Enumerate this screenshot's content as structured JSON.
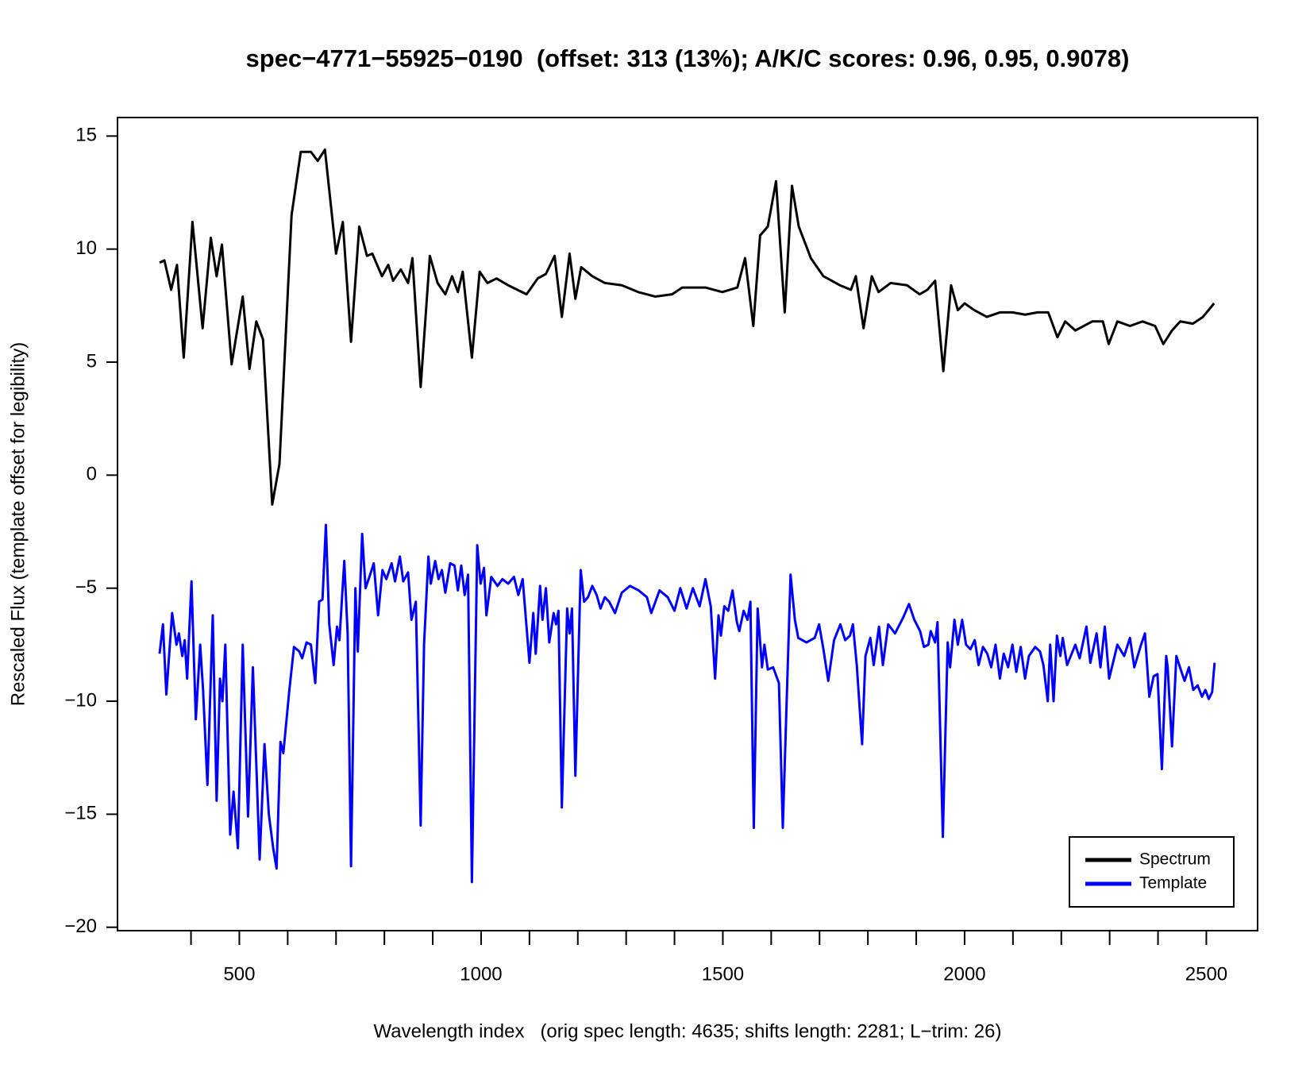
{
  "chart_data": {
    "type": "line",
    "title": "spec−4771−55925−0190  (offset: 313 (13%); A/K/C scores: 0.96, 0.95, 0.9078)",
    "x_label": "Wavelength index   (orig spec length: 4635; shifts length: 2281; L−trim: 26)",
    "y_label": "Rescaled Flux (template offset for legibility)",
    "xlim": [
      248,
      2606
    ],
    "ylim": [
      -20.15,
      15.82
    ],
    "xticks": [
      500,
      1000,
      1500,
      2000,
      2500
    ],
    "xminor_ticks": [
      400,
      600,
      700,
      800,
      900,
      1100,
      1200,
      1300,
      1400,
      1600,
      1700,
      1800,
      1900,
      2100,
      2200,
      2300,
      2400
    ],
    "yticks": [
      {
        "value": -20,
        "label": "−20"
      },
      {
        "value": -15,
        "label": "−15"
      },
      {
        "value": -10,
        "label": "−10"
      },
      {
        "value": -5,
        "label": "−5"
      },
      0,
      5,
      10,
      15
    ],
    "legend": "bottomright",
    "series": [
      {
        "name": "Spectrum",
        "color": "#000000",
        "x": [
          335,
          345,
          359,
          371,
          385,
          403,
          424,
          441,
          453,
          464,
          484,
          507,
          521,
          535,
          549,
          568,
          583,
          608,
          627,
          648,
          662,
          677,
          700,
          714,
          731,
          748,
          764,
          775,
          795,
          808,
          818,
          834,
          849,
          858,
          875,
          894,
          910,
          926,
          940,
          952,
          962,
          981,
          997,
          1013,
          1032,
          1056,
          1094,
          1117,
          1134,
          1152,
          1167,
          1183,
          1195,
          1207,
          1230,
          1256,
          1291,
          1325,
          1360,
          1395,
          1416,
          1438,
          1464,
          1499,
          1530,
          1546,
          1563,
          1577,
          1593,
          1610,
          1628,
          1643,
          1657,
          1682,
          1708,
          1742,
          1765,
          1775,
          1791,
          1808,
          1822,
          1847,
          1881,
          1907,
          1923,
          1939,
          1956,
          1972,
          1986,
          2000,
          2020,
          2046,
          2073,
          2099,
          2125,
          2151,
          2173,
          2192,
          2208,
          2229,
          2264,
          2286,
          2298,
          2316,
          2342,
          2368,
          2394,
          2411,
          2429,
          2446,
          2472,
          2493,
          2516
        ],
        "values": [
          9.4,
          9.5,
          8.2,
          9.3,
          5.2,
          11.2,
          6.5,
          10.5,
          8.8,
          10.2,
          4.9,
          7.9,
          4.7,
          6.8,
          6.0,
          -1.3,
          0.5,
          11.5,
          14.3,
          14.3,
          13.9,
          14.4,
          9.8,
          11.2,
          5.9,
          11.0,
          9.7,
          9.8,
          8.8,
          9.3,
          8.6,
          9.1,
          8.5,
          9.6,
          3.9,
          9.7,
          8.5,
          8.0,
          8.8,
          8.1,
          9.0,
          5.2,
          9.0,
          8.5,
          8.7,
          8.4,
          8.0,
          8.7,
          8.9,
          9.7,
          7.0,
          9.8,
          7.8,
          9.2,
          8.8,
          8.5,
          8.4,
          8.1,
          7.9,
          8.0,
          8.3,
          8.3,
          8.3,
          8.1,
          8.3,
          9.6,
          6.6,
          10.6,
          11.0,
          13.0,
          7.2,
          12.8,
          11.0,
          9.6,
          8.8,
          8.4,
          8.2,
          8.8,
          6.5,
          8.8,
          8.1,
          8.5,
          8.4,
          8.0,
          8.2,
          8.6,
          4.6,
          8.4,
          7.3,
          7.6,
          7.3,
          7.0,
          7.2,
          7.2,
          7.1,
          7.2,
          7.2,
          6.1,
          6.8,
          6.4,
          6.8,
          6.8,
          5.8,
          6.8,
          6.6,
          6.8,
          6.6,
          5.8,
          6.4,
          6.8,
          6.7,
          7.0,
          7.6
        ]
      },
      {
        "name": "Template",
        "color": "#0000ff",
        "x": [
          335,
          342,
          349,
          361,
          370,
          375,
          382,
          387,
          392,
          401,
          410,
          419,
          425,
          434,
          445,
          453,
          460,
          465,
          471,
          481,
          488,
          497,
          507,
          518,
          528,
          542,
          552,
          561,
          570,
          577,
          585,
          591,
          603,
          613,
          624,
          630,
          639,
          648,
          657,
          665,
          672,
          679,
          686,
          695,
          702,
          707,
          717,
          724,
          731,
          740,
          745,
          754,
          761,
          769,
          778,
          787,
          796,
          804,
          815,
          822,
          832,
          839,
          849,
          856,
          865,
          875,
          882,
          891,
          896,
          905,
          912,
          919,
          926,
          936,
          945,
          952,
          959,
          966,
          973,
          981,
          992,
          999,
          1006,
          1011,
          1021,
          1034,
          1044,
          1056,
          1068,
          1077,
          1086,
          1100,
          1108,
          1113,
          1122,
          1127,
          1134,
          1141,
          1150,
          1155,
          1160,
          1167,
          1178,
          1183,
          1188,
          1195,
          1206,
          1213,
          1221,
          1230,
          1239,
          1247,
          1256,
          1265,
          1277,
          1291,
          1308,
          1326,
          1343,
          1352,
          1369,
          1386,
          1400,
          1412,
          1425,
          1438,
          1452,
          1464,
          1475,
          1484,
          1491,
          1496,
          1503,
          1511,
          1520,
          1529,
          1534,
          1543,
          1551,
          1557,
          1564,
          1572,
          1581,
          1586,
          1593,
          1604,
          1616,
          1624,
          1640,
          1649,
          1656,
          1673,
          1690,
          1699,
          1708,
          1718,
          1730,
          1743,
          1753,
          1763,
          1769,
          1777,
          1788,
          1795,
          1805,
          1812,
          1823,
          1831,
          1842,
          1856,
          1873,
          1885,
          1896,
          1908,
          1916,
          1925,
          1930,
          1939,
          1944,
          1955,
          1965,
          1970,
          1979,
          1986,
          1995,
          2003,
          2012,
          2021,
          2029,
          2038,
          2047,
          2055,
          2064,
          2073,
          2081,
          2090,
          2099,
          2107,
          2116,
          2125,
          2133,
          2146,
          2156,
          2163,
          2172,
          2177,
          2184,
          2191,
          2198,
          2203,
          2212,
          2229,
          2238,
          2252,
          2260,
          2273,
          2281,
          2290,
          2299,
          2316,
          2330,
          2342,
          2351,
          2365,
          2373,
          2382,
          2391,
          2399,
          2408,
          2417,
          2420,
          2429,
          2438,
          2447,
          2455,
          2464,
          2473,
          2482,
          2491,
          2498,
          2505,
          2512,
          2517
        ],
        "values": [
          -7.9,
          -6.6,
          -9.7,
          -6.1,
          -7.5,
          -7.0,
          -8.0,
          -7.3,
          -9.0,
          -4.7,
          -10.8,
          -7.5,
          -9.5,
          -13.7,
          -6.2,
          -14.4,
          -9.0,
          -10.0,
          -7.5,
          -15.9,
          -14.0,
          -16.5,
          -7.5,
          -15.1,
          -8.5,
          -17.0,
          -11.9,
          -15.0,
          -16.5,
          -17.4,
          -11.8,
          -12.3,
          -9.6,
          -7.6,
          -7.8,
          -8.1,
          -7.4,
          -7.5,
          -9.2,
          -5.6,
          -5.5,
          -2.2,
          -6.6,
          -8.4,
          -6.7,
          -7.3,
          -3.8,
          -7.0,
          -17.3,
          -5.0,
          -7.8,
          -2.6,
          -5.0,
          -4.5,
          -3.9,
          -6.2,
          -4.2,
          -4.6,
          -3.9,
          -4.7,
          -3.6,
          -4.7,
          -4.3,
          -6.4,
          -5.6,
          -15.5,
          -7.5,
          -3.6,
          -4.8,
          -3.8,
          -4.6,
          -4.2,
          -5.2,
          -3.9,
          -4.0,
          -5.1,
          -4.0,
          -5.3,
          -4.4,
          -18.0,
          -3.1,
          -4.8,
          -4.1,
          -6.2,
          -4.5,
          -4.9,
          -4.6,
          -4.8,
          -4.5,
          -5.3,
          -4.6,
          -8.3,
          -6.1,
          -7.9,
          -4.9,
          -6.4,
          -5.0,
          -7.4,
          -6.1,
          -6.6,
          -6.0,
          -14.7,
          -5.9,
          -7.0,
          -5.9,
          -13.3,
          -4.2,
          -5.6,
          -5.4,
          -4.9,
          -5.3,
          -5.9,
          -5.4,
          -5.6,
          -6.1,
          -5.2,
          -4.9,
          -5.1,
          -5.4,
          -6.1,
          -5.1,
          -5.4,
          -6.0,
          -5.0,
          -5.9,
          -5.0,
          -5.8,
          -4.6,
          -5.8,
          -9.0,
          -6.2,
          -7.1,
          -5.8,
          -6.0,
          -5.1,
          -6.5,
          -6.9,
          -6.0,
          -6.4,
          -5.6,
          -15.6,
          -5.9,
          -8.5,
          -7.5,
          -8.6,
          -8.5,
          -9.2,
          -15.6,
          -4.4,
          -6.4,
          -7.2,
          -7.4,
          -7.2,
          -6.6,
          -7.7,
          -9.1,
          -7.3,
          -6.6,
          -7.3,
          -7.1,
          -6.6,
          -8.4,
          -11.9,
          -8.0,
          -7.2,
          -8.4,
          -6.7,
          -8.4,
          -6.6,
          -7.0,
          -6.3,
          -5.7,
          -6.4,
          -6.9,
          -7.6,
          -7.5,
          -6.9,
          -7.4,
          -6.5,
          -16.0,
          -7.4,
          -8.5,
          -6.4,
          -7.5,
          -6.4,
          -7.5,
          -7.7,
          -7.3,
          -8.4,
          -7.6,
          -7.9,
          -8.5,
          -7.5,
          -9.0,
          -7.9,
          -8.5,
          -7.5,
          -8.7,
          -7.6,
          -9.0,
          -8.0,
          -7.6,
          -7.8,
          -8.4,
          -10.0,
          -7.5,
          -10.0,
          -7.1,
          -8.0,
          -7.2,
          -8.4,
          -7.5,
          -8.1,
          -6.7,
          -8.3,
          -7.0,
          -8.5,
          -6.7,
          -9.0,
          -7.5,
          -8.0,
          -7.2,
          -8.5,
          -7.5,
          -7.0,
          -9.8,
          -8.9,
          -8.8,
          -13.0,
          -8.0,
          -8.5,
          -12.0,
          -8.0,
          -8.6,
          -9.1,
          -8.5,
          -9.5,
          -9.3,
          -9.8,
          -9.5,
          -9.9,
          -9.6,
          -8.3
        ]
      }
    ]
  }
}
